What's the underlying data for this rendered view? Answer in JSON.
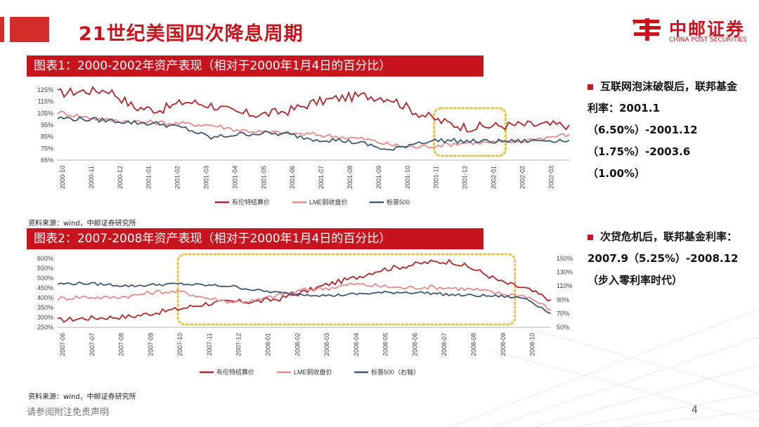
{
  "page": {
    "title": "21世纪美国四次降息周期",
    "footer": "请参阅附注免责声明",
    "page_number": "4"
  },
  "logo": {
    "cn": "中邮证券",
    "en": "CHINA POST SECURITIES"
  },
  "colors": {
    "brand_red": "#c8141e",
    "brent": "#b2252b",
    "lme": "#e88a8a",
    "spx": "#3f5872",
    "highlight": "#e6c54a"
  },
  "bullets": [
    {
      "text": "互联网泡沫破裂后，联邦基金利率：2001.1（6.50%）-2001.12（1.75%）-2003.6（1.00%）"
    },
    {
      "text": "次贷危机后，联邦基金利率：2007.9（5.25%）-2008.12（步入零利率时代）"
    }
  ],
  "chart_data": [
    {
      "type": "line",
      "title": "图表1：2000-2002年资产表现（相对于2000年1月4日的百分比）",
      "source": "资料来源：wind，中邮证券研究所",
      "y_ticks": [
        "125%",
        "115%",
        "105%",
        "95%",
        "85%",
        "75%",
        "65%"
      ],
      "ylim": [
        65,
        125
      ],
      "x_ticks": [
        "2000-10",
        "2000-11",
        "2000-12",
        "2001-01",
        "2001-02",
        "2001-03",
        "2001-04",
        "2001-05",
        "2001-06",
        "2001-07",
        "2001-08",
        "2001-09",
        "2001-10",
        "2001-11",
        "2001-12",
        "2002-01",
        "2002-02",
        "2002-03"
      ],
      "legend_position": "bottom",
      "highlight": {
        "x_range": [
          "2001-11",
          "2002-01"
        ]
      },
      "series": [
        {
          "name": "布伦特结算价",
          "axis": "left",
          "values": [
            122,
            124,
            125,
            110,
            108,
            115,
            112,
            105,
            104,
            107,
            114,
            118,
            120,
            118,
            106,
            98,
            93,
            94,
            95,
            95,
            95
          ]
        },
        {
          "name": "LME铜收盘价",
          "axis": "left",
          "values": [
            106,
            102,
            99,
            98,
            97,
            96,
            95,
            91,
            89,
            88,
            87,
            85,
            83,
            78,
            76,
            78,
            80,
            80,
            81,
            84,
            87
          ]
        },
        {
          "name": "标普500",
          "axis": "left",
          "values": [
            101,
            100,
            99,
            97,
            96,
            92,
            84,
            87,
            88,
            87,
            83,
            82,
            79,
            73,
            80,
            82,
            81,
            81,
            81,
            82,
            82
          ]
        }
      ]
    },
    {
      "type": "line",
      "title": "图表2：2007-2008年资产表现（相对于2000年1月4日的百分比）",
      "source": "资料来源：wind，中邮证券研究所",
      "y_ticks_left": [
        "600%",
        "550%",
        "500%",
        "450%",
        "400%",
        "350%",
        "300%",
        "250%"
      ],
      "ylim_left": [
        250,
        600
      ],
      "y_ticks_right": [
        "150%",
        "130%",
        "110%",
        "90%",
        "70%",
        "50%"
      ],
      "ylim_right": [
        50,
        150
      ],
      "x_ticks": [
        "2007-06",
        "2007-07",
        "2007-08",
        "2007-09",
        "2007-10",
        "2007-11",
        "2007-12",
        "2008-01",
        "2008-02",
        "2008-03",
        "2008-04",
        "2008-05",
        "2008-06",
        "2008-07",
        "2008-08",
        "2008-09",
        "2008-10"
      ],
      "legend_position": "bottom",
      "highlight": {
        "x_range": [
          "2007-10",
          "2008-09"
        ]
      },
      "series": [
        {
          "name": "布伦特结算价",
          "axis": "left",
          "values": [
            285,
            295,
            300,
            305,
            325,
            345,
            370,
            380,
            380,
            395,
            430,
            470,
            500,
            540,
            560,
            580,
            585,
            540,
            480,
            445,
            390
          ]
        },
        {
          "name": "LME铜收盘价",
          "axis": "left",
          "values": [
            395,
            405,
            400,
            410,
            430,
            430,
            400,
            380,
            385,
            415,
            440,
            450,
            470,
            460,
            450,
            455,
            450,
            440,
            420,
            410,
            340
          ]
        },
        {
          "name": "标普500（右轴）",
          "axis": "right",
          "values": [
            113,
            114,
            112,
            110,
            112,
            113,
            111,
            110,
            104,
            100,
            98,
            96,
            98,
            100,
            101,
            100,
            97,
            96,
            95,
            92,
            70
          ]
        }
      ]
    }
  ],
  "legends": [
    {
      "items": [
        "布伦特结算价",
        "LME铜收盘价",
        "标普500"
      ]
    },
    {
      "items": [
        "布伦特结算价",
        "LME铜收盘价",
        "标普500（右轴）"
      ]
    }
  ]
}
